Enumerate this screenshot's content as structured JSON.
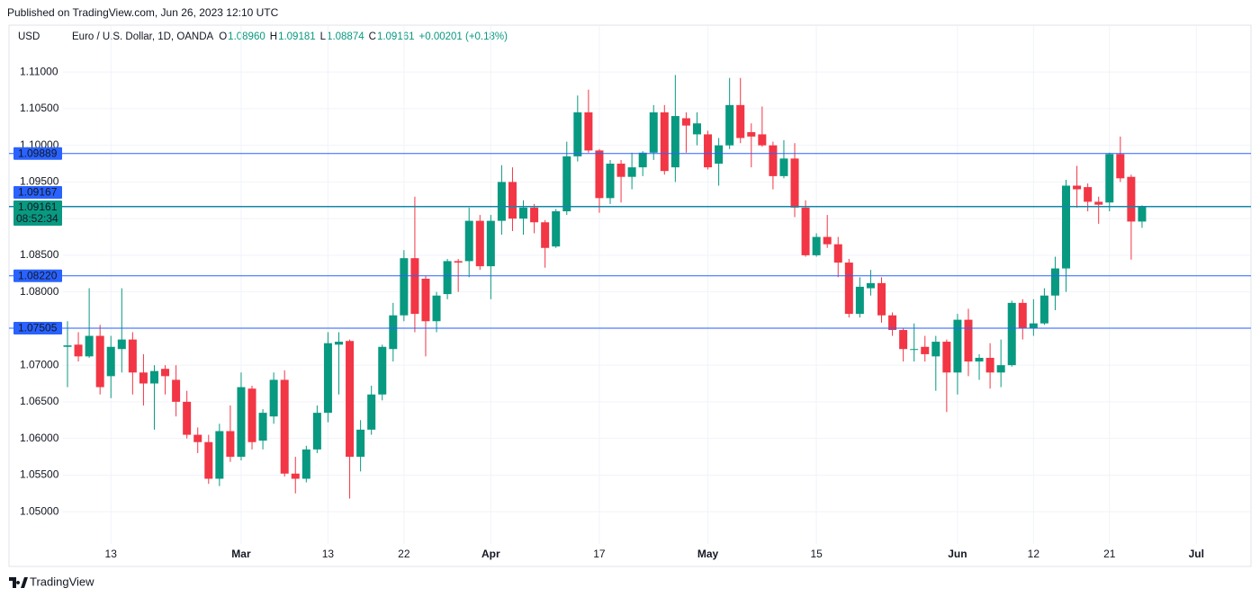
{
  "published": "Published on TradingView.com, Jun 26, 2023 12:10 UTC",
  "footer": "TradingView",
  "chart_data": {
    "type": "candlestick",
    "currency": "USD",
    "symbol": "Euro / U.S. Dollar, 1D, OANDA",
    "ohlc_legend": [
      {
        "key": "O",
        "value": "1.08960"
      },
      {
        "key": "H",
        "value": "1.09181"
      },
      {
        "key": "L",
        "value": "1.08874"
      },
      {
        "key": "C",
        "value": "1.09161"
      }
    ],
    "change": "+0.00201 (+0.18%)",
    "up_color": "#089981",
    "down_color": "#f23645",
    "ylim": [
      1.0456,
      1.1164
    ],
    "yticks": [
      {
        "value": 1.11,
        "label": "1.11000"
      },
      {
        "value": 1.105,
        "label": "1.10500"
      },
      {
        "value": 1.1,
        "label": "1.10000"
      },
      {
        "value": 1.095,
        "label": "1.09500"
      },
      {
        "value": 1.09,
        "label": "1.09000"
      },
      {
        "value": 1.085,
        "label": "1.08500"
      },
      {
        "value": 1.08,
        "label": "1.08000"
      },
      {
        "value": 1.075,
        "label": "1.07500"
      },
      {
        "value": 1.07,
        "label": "1.07000"
      },
      {
        "value": 1.065,
        "label": "1.06500"
      },
      {
        "value": 1.06,
        "label": "1.06000"
      },
      {
        "value": 1.055,
        "label": "1.05500"
      },
      {
        "value": 1.05,
        "label": "1.05000"
      }
    ],
    "grid": true,
    "price_lines": [
      {
        "value": 1.09889,
        "color": "#2962ff"
      },
      {
        "value": 1.09167,
        "color": "#2962ff"
      },
      {
        "value": 1.0822,
        "label": "1.08220",
        "color": "#2962ff"
      },
      {
        "value": 1.07505,
        "color": "#2962ff"
      }
    ],
    "last_price": {
      "value": 1.09161,
      "countdown": "08:52:34",
      "color": "#089981"
    },
    "categories": [
      null,
      null,
      null,
      null,
      "13",
      null,
      null,
      null,
      null,
      null,
      null,
      null,
      null,
      null,
      null,
      null,
      "Mar",
      null,
      null,
      null,
      null,
      null,
      null,
      null,
      "13",
      null,
      null,
      null,
      null,
      null,
      null,
      "22",
      null,
      null,
      null,
      null,
      null,
      null,
      null,
      "Apr",
      null,
      null,
      null,
      null,
      null,
      null,
      null,
      null,
      null,
      "17",
      null,
      null,
      null,
      null,
      null,
      null,
      null,
      null,
      null,
      "May",
      null,
      null,
      null,
      null,
      null,
      null,
      null,
      null,
      null,
      "15",
      null,
      null,
      null,
      null,
      null,
      null,
      null,
      null,
      null,
      null,
      null,
      null,
      "Jun",
      null,
      null,
      null,
      null,
      null,
      null,
      "12",
      null,
      null,
      null,
      null,
      null,
      null,
      "21",
      null,
      null,
      null,
      null,
      null,
      null,
      null,
      "Jul"
    ],
    "open": [
      1.0725,
      1.0728,
      1.0712,
      1.074,
      1.0685,
      1.0722,
      1.0735,
      1.069,
      1.0675,
      1.0695,
      1.068,
      1.065,
      1.0605,
      1.0595,
      1.0545,
      1.061,
      1.0575,
      1.0668,
      1.0597,
      1.063,
      1.068,
      1.0552,
      1.0545,
      1.0585,
      1.0635,
      1.0728,
      1.0733,
      1.0575,
      1.0612,
      1.066,
      1.0722,
      1.0768,
      1.0846,
      1.0818,
      1.076,
      1.0797,
      1.0842,
      1.0842,
      1.0897,
      1.0835,
      1.0897,
      1.095,
      1.09,
      1.0915,
      1.0895,
      1.0862,
      1.091,
      1.0985,
      1.1045,
      1.0993,
      1.0928,
      1.0975,
      1.0957,
      1.097,
      1.099,
      1.1045,
      1.097,
      1.1037,
      1.1015,
      1.1015,
      1.0975,
      1.1,
      1.1055,
      1.1018,
      1.1015,
      1.1,
      1.0958,
      1.0982,
      1.0915,
      1.085,
      1.0875,
      1.0865,
      1.084,
      1.077,
      1.0805,
      1.0812,
      1.0768,
      1.0748,
      1.0722,
      1.0725,
      1.0712,
      1.0732,
      1.069,
      1.0762,
      1.0705,
      1.071,
      1.069,
      1.07,
      1.0785,
      1.075,
      1.0757,
      1.0795,
      1.0832,
      1.0945,
      1.0943,
      1.0923,
      1.0922,
      1.0988,
      1.0957,
      1.0896,
      null,
      null,
      null,
      null,
      null
    ],
    "high": [
      1.076,
      1.0745,
      1.0805,
      1.0755,
      1.074,
      1.0805,
      1.0745,
      1.0715,
      1.07,
      1.07,
      1.07,
      1.0665,
      1.0615,
      1.0605,
      1.062,
      1.0645,
      1.069,
      1.0672,
      1.064,
      1.069,
      1.0693,
      1.0575,
      1.059,
      1.0645,
      1.0745,
      1.0745,
      1.0735,
      1.0625,
      1.0672,
      1.0728,
      1.0785,
      1.0857,
      1.093,
      1.0822,
      1.08,
      1.0845,
      1.0845,
      1.0915,
      1.0905,
      1.0905,
      1.0973,
      1.097,
      1.0925,
      1.092,
      1.0898,
      1.0913,
      1.1005,
      1.1068,
      1.1076,
      1.0995,
      1.098,
      1.098,
      1.099,
      1.0992,
      1.1055,
      1.1055,
      1.1096,
      1.1045,
      1.1045,
      1.102,
      1.101,
      1.1092,
      1.1092,
      1.103,
      1.1053,
      1.1005,
      1.1007,
      1.1003,
      1.0925,
      1.088,
      1.0905,
      1.0875,
      1.0845,
      1.082,
      1.083,
      1.082,
      1.0772,
      1.075,
      1.0757,
      1.074,
      1.074,
      1.0735,
      1.077,
      1.0777,
      1.0715,
      1.073,
      1.0735,
      1.0788,
      1.079,
      1.079,
      1.0805,
      1.0848,
      1.0953,
      1.0972,
      1.0948,
      1.093,
      1.099,
      1.1012,
      1.096,
      1.09181,
      null,
      null,
      null,
      null,
      null
    ],
    "low": [
      1.067,
      1.0705,
      1.071,
      1.066,
      1.0655,
      1.069,
      1.066,
      1.0645,
      1.0612,
      1.066,
      1.063,
      1.06,
      1.058,
      1.0538,
      1.0535,
      1.0568,
      1.057,
      1.0585,
      1.0585,
      1.062,
      1.0548,
      1.0525,
      1.054,
      1.058,
      1.0622,
      1.066,
      1.0518,
      1.0555,
      1.0605,
      1.0652,
      1.0705,
      1.076,
      1.0745,
      1.0712,
      1.0745,
      1.079,
      1.08,
      1.082,
      1.083,
      1.079,
      1.0878,
      1.0883,
      1.0878,
      1.088,
      1.0833,
      1.086,
      1.0905,
      1.0978,
      1.099,
      1.0908,
      1.092,
      1.0922,
      1.094,
      1.0958,
      1.098,
      1.096,
      1.095,
      1.099,
      1.1,
      1.0967,
      1.0945,
      1.0995,
      1.1003,
      1.097,
      1.0998,
      1.094,
      1.0955,
      1.0902,
      1.0848,
      1.0848,
      1.086,
      1.082,
      1.0765,
      1.0765,
      1.0795,
      1.0758,
      1.074,
      1.0705,
      1.0705,
      1.0705,
      1.0665,
      1.0636,
      1.066,
      1.0685,
      1.068,
      1.0668,
      1.067,
      1.0698,
      1.0735,
      1.074,
      1.0755,
      1.0775,
      1.08,
      1.0915,
      1.091,
      1.0893,
      1.091,
      1.095,
      1.0844,
      1.08874,
      null,
      null,
      null,
      null,
      null
    ],
    "close": [
      1.0727,
      1.0712,
      1.074,
      1.067,
      1.0725,
      1.0735,
      1.069,
      1.0675,
      1.0692,
      1.0685,
      1.065,
      1.0605,
      1.0595,
      1.0545,
      1.061,
      1.0575,
      1.067,
      1.0595,
      1.0635,
      1.068,
      1.0552,
      1.0545,
      1.0585,
      1.0635,
      1.073,
      1.0732,
      1.0575,
      1.0612,
      1.066,
      1.0725,
      1.0768,
      1.0846,
      1.077,
      1.076,
      1.0795,
      1.0842,
      1.084,
      1.0897,
      1.0835,
      1.0897,
      1.095,
      1.09,
      1.0915,
      1.0895,
      1.086,
      1.091,
      1.0985,
      1.1045,
      1.0993,
      1.0928,
      1.0975,
      1.0957,
      1.097,
      1.099,
      1.1045,
      1.0965,
      1.104,
      1.1027,
      1.103,
      1.097,
      1.1,
      1.1055,
      1.101,
      1.1012,
      1.1,
      1.0958,
      1.0982,
      1.0915,
      1.085,
      1.0875,
      1.0865,
      1.084,
      1.077,
      1.0807,
      1.0812,
      1.0768,
      1.0748,
      1.0722,
      1.0722,
      1.0715,
      1.0732,
      1.069,
      1.0762,
      1.0705,
      1.071,
      1.069,
      1.07,
      1.0785,
      1.075,
      1.0757,
      1.0795,
      1.0832,
      1.0945,
      1.094,
      1.0923,
      1.0919,
      1.0988,
      1.0955,
      1.0896,
      1.09161,
      null,
      null,
      null,
      null,
      null
    ]
  }
}
